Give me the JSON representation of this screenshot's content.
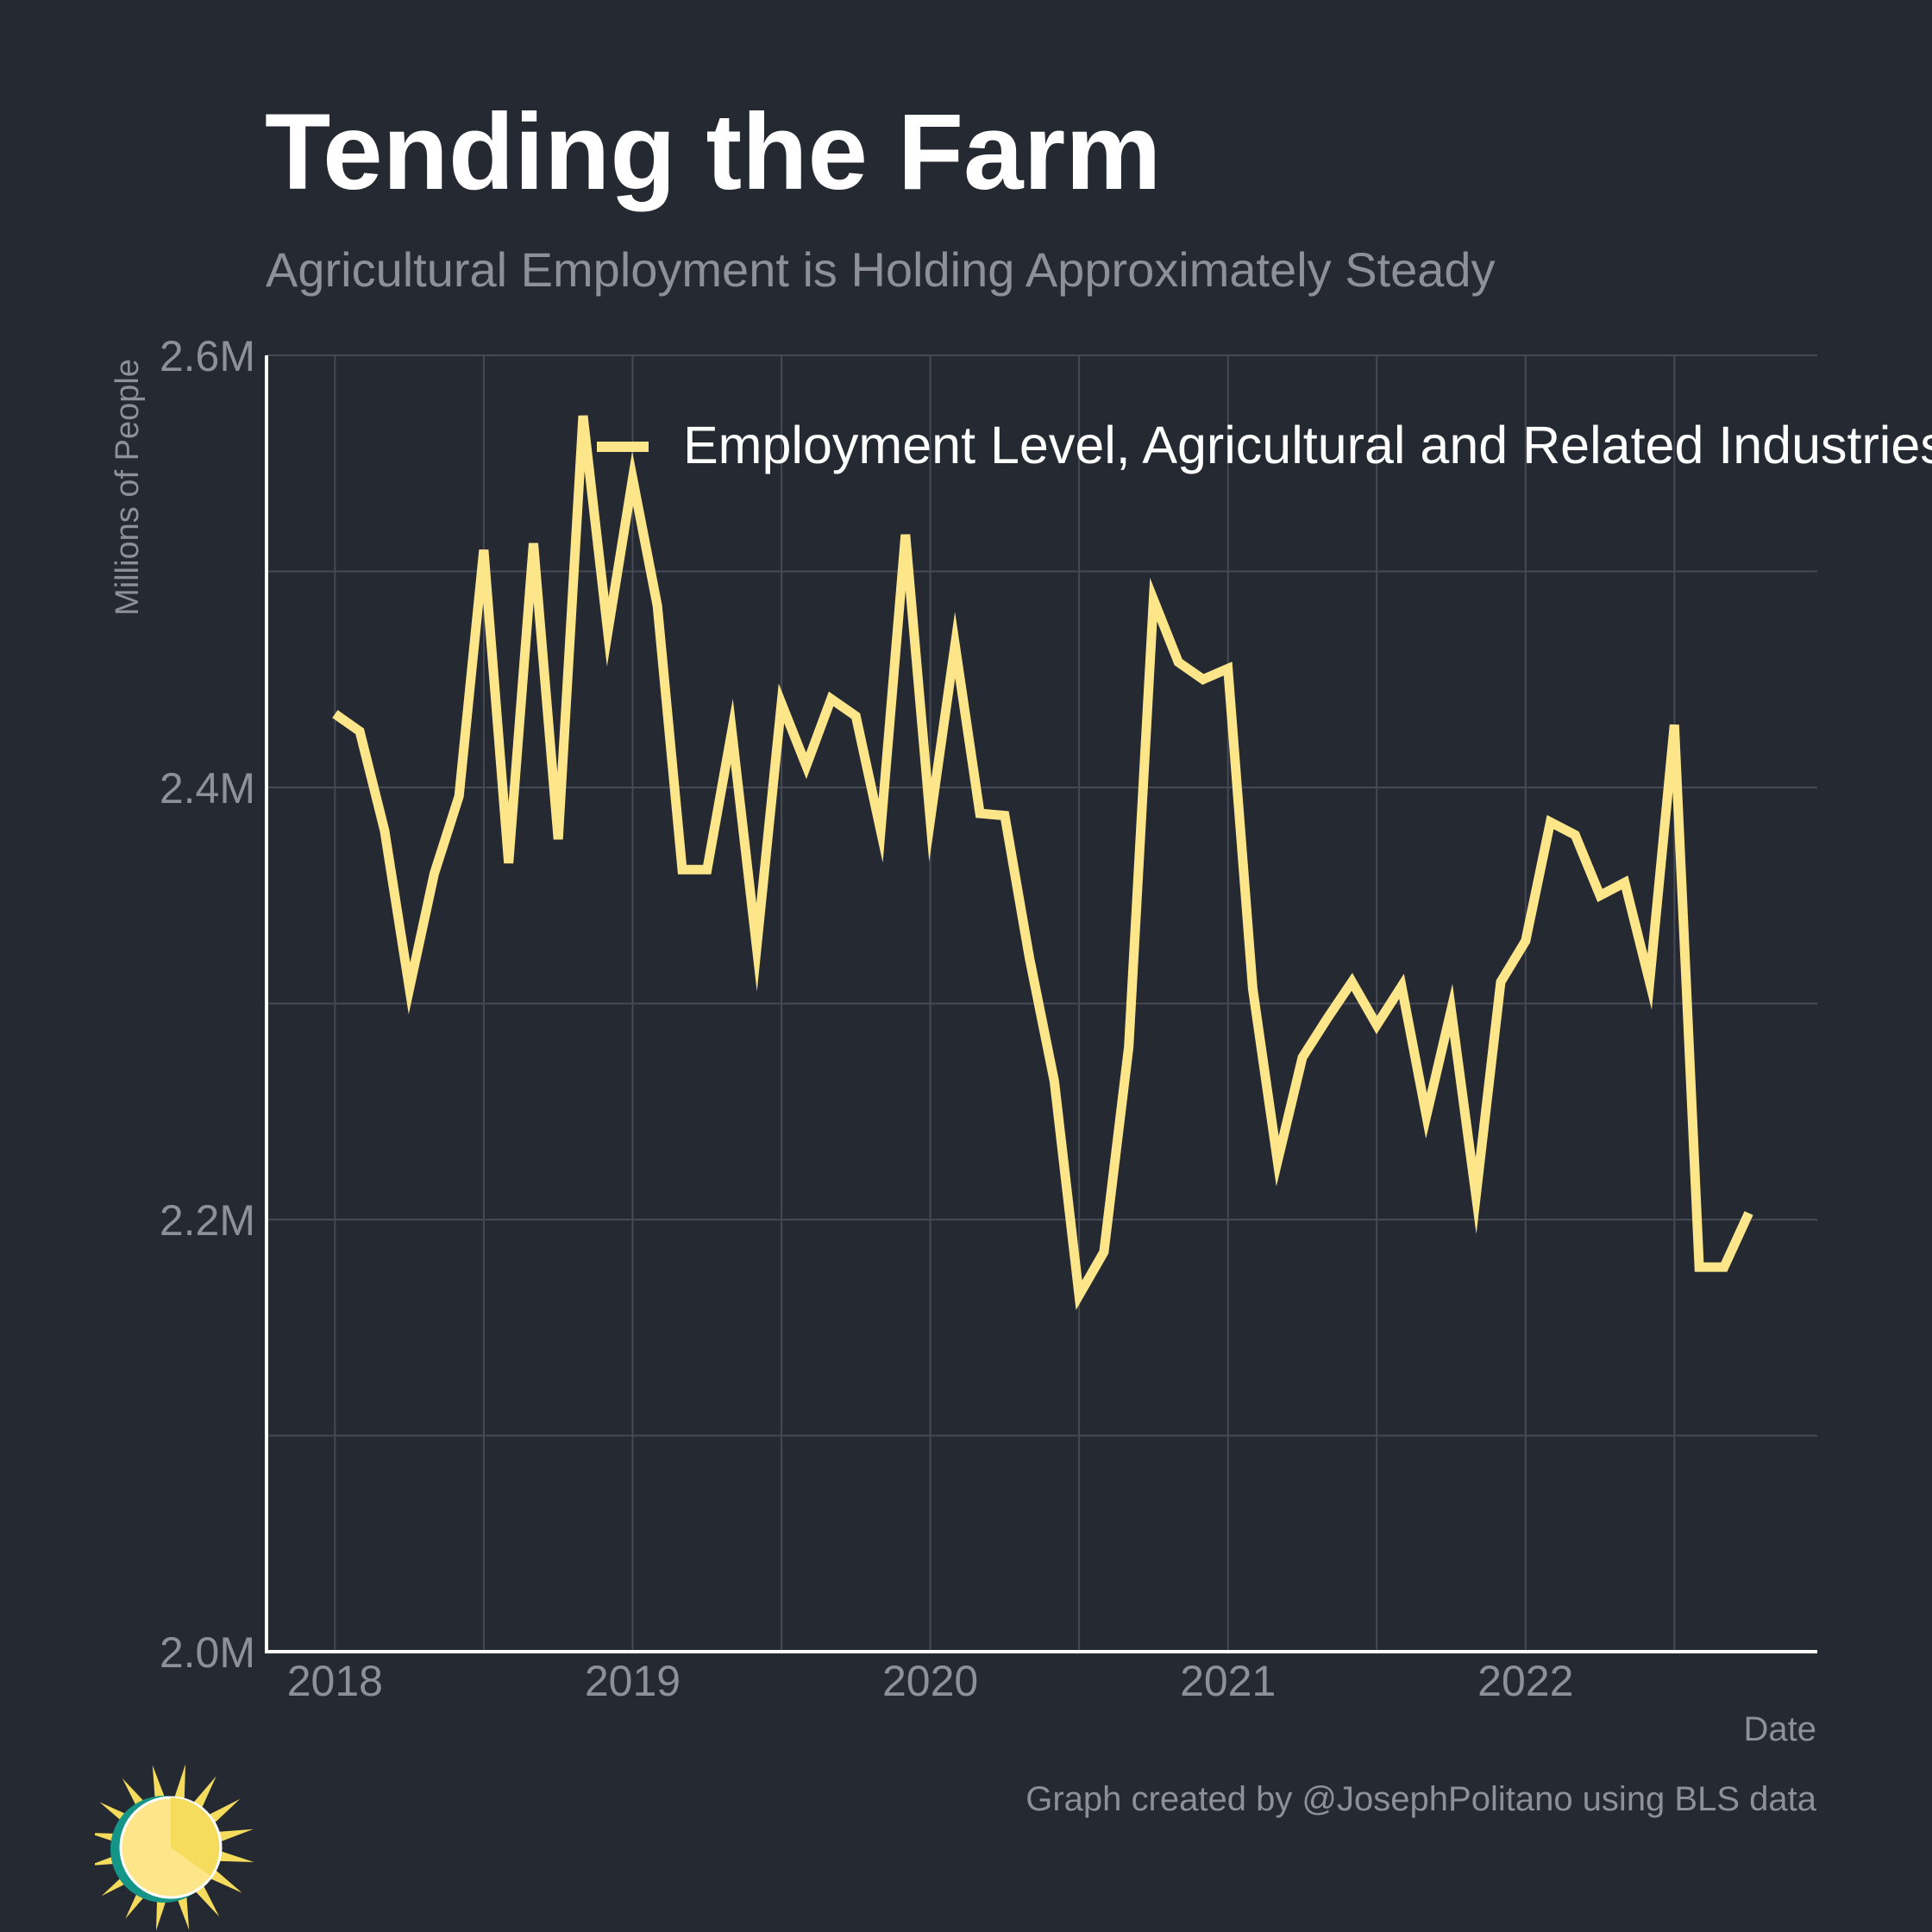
{
  "header": {
    "title": "Tending the Farm",
    "subtitle": "Agricultural Employment is Holding Approximately Steady"
  },
  "footer": {
    "credit": "Graph created by @JosephPolitano using BLS data"
  },
  "colors": {
    "background": "#252932",
    "line": "#fde68a",
    "grid": "#454a55",
    "axis": "#ffffff",
    "tick_text": "#8e9099",
    "logo_ring": "#159488",
    "logo_sun": "#fde68a",
    "logo_rays": "#f6dc5c"
  },
  "chart_data": {
    "type": "line",
    "title": "Tending the Farm",
    "subtitle": "Agricultural Employment is Holding Approximately Steady",
    "xlabel": "Date",
    "ylabel": "Millions of People",
    "x_ticks": [
      "2018",
      "2019",
      "2020",
      "2021",
      "2022"
    ],
    "x_tick_values": [
      2018,
      2019,
      2020,
      2021,
      2022
    ],
    "y_ticks": [
      2.0,
      2.2,
      2.4,
      2.6
    ],
    "y_tick_labels": [
      "2.0M",
      "2.2M",
      "2.4M",
      "2.6M"
    ],
    "y_minor_gridlines": [
      2.1,
      2.3,
      2.5
    ],
    "x_minor_gridlines": [
      2018.5,
      2019.5,
      2020.5,
      2021.5,
      2022.5
    ],
    "xlim": [
      2017.77,
      2022.98
    ],
    "ylim": [
      2.0,
      2.6
    ],
    "grid": true,
    "legend_position": "top-right",
    "series": [
      {
        "name": "Employment Level, Agricultural and Related Industries",
        "x": [
          2018.0,
          2018.0833,
          2018.1667,
          2018.25,
          2018.3333,
          2018.4167,
          2018.5,
          2018.5833,
          2018.6667,
          2018.75,
          2018.8333,
          2018.9167,
          2019.0,
          2019.0833,
          2019.1667,
          2019.25,
          2019.3333,
          2019.4167,
          2019.5,
          2019.5833,
          2019.6667,
          2019.75,
          2019.8333,
          2019.9167,
          2020.0,
          2020.0833,
          2020.1667,
          2020.25,
          2020.3333,
          2020.4167,
          2020.5,
          2020.5833,
          2020.6667,
          2020.75,
          2020.8333,
          2020.9167,
          2021.0,
          2021.0833,
          2021.1667,
          2021.25,
          2021.3333,
          2021.4167,
          2021.5,
          2021.5833,
          2021.6667,
          2021.75,
          2021.8333,
          2021.9167,
          2022.0,
          2022.0833,
          2022.1667,
          2022.25,
          2022.3333,
          2022.4167,
          2022.5,
          2022.5833,
          2022.6667,
          2022.75
        ],
        "values": [
          2.434,
          2.426,
          2.38,
          2.307,
          2.36,
          2.396,
          2.51,
          2.365,
          2.513,
          2.376,
          2.572,
          2.472,
          2.543,
          2.484,
          2.362,
          2.362,
          2.426,
          2.326,
          2.439,
          2.41,
          2.441,
          2.433,
          2.38,
          2.517,
          2.385,
          2.466,
          2.388,
          2.387,
          2.321,
          2.264,
          2.165,
          2.185,
          2.28,
          2.487,
          2.458,
          2.45,
          2.455,
          2.307,
          2.227,
          2.275,
          2.293,
          2.31,
          2.29,
          2.308,
          2.248,
          2.297,
          2.211,
          2.31,
          2.329,
          2.384,
          2.378,
          2.35,
          2.356,
          2.31,
          2.429,
          2.178,
          2.178,
          2.203
        ]
      }
    ]
  }
}
